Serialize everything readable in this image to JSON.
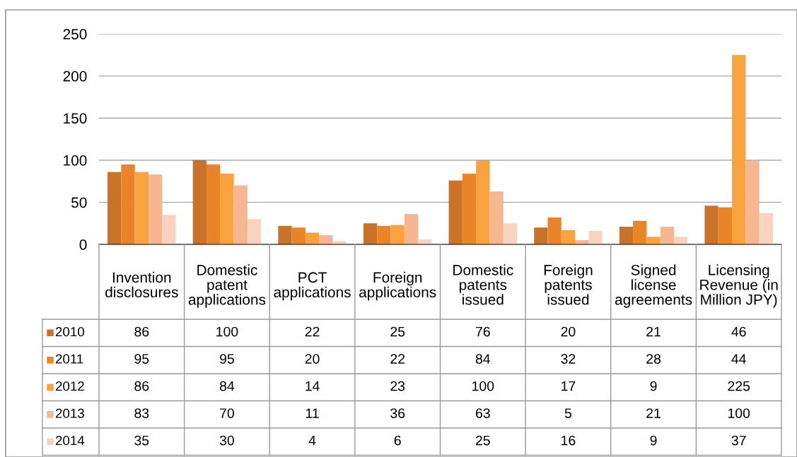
{
  "chart_data": {
    "type": "bar",
    "categories": [
      "Invention disclosures",
      "Domestic patent applications",
      "PCT applications",
      "Foreign applications",
      "Domestic patents issued",
      "Foreign patents issued",
      "Signed license agreements",
      "Licensing Revenue (in Million JPY)"
    ],
    "series": [
      {
        "name": "2010",
        "color": "#c8722a",
        "values": [
          86,
          100,
          22,
          25,
          76,
          20,
          21,
          46
        ]
      },
      {
        "name": "2011",
        "color": "#e98428",
        "values": [
          95,
          95,
          20,
          22,
          84,
          32,
          28,
          44
        ]
      },
      {
        "name": "2012",
        "color": "#f9a23e",
        "values": [
          86,
          84,
          14,
          23,
          100,
          17,
          9,
          225
        ]
      },
      {
        "name": "2013",
        "color": "#f6b690",
        "values": [
          83,
          70,
          11,
          36,
          63,
          5,
          21,
          100
        ]
      },
      {
        "name": "2014",
        "color": "#f8d3c0",
        "values": [
          35,
          30,
          4,
          6,
          25,
          16,
          9,
          37
        ]
      }
    ],
    "ylim": [
      0,
      250
    ],
    "yticks": [
      0,
      50,
      100,
      150,
      200,
      250
    ],
    "grid": "y",
    "data_labels": true,
    "legend": "bottom"
  }
}
